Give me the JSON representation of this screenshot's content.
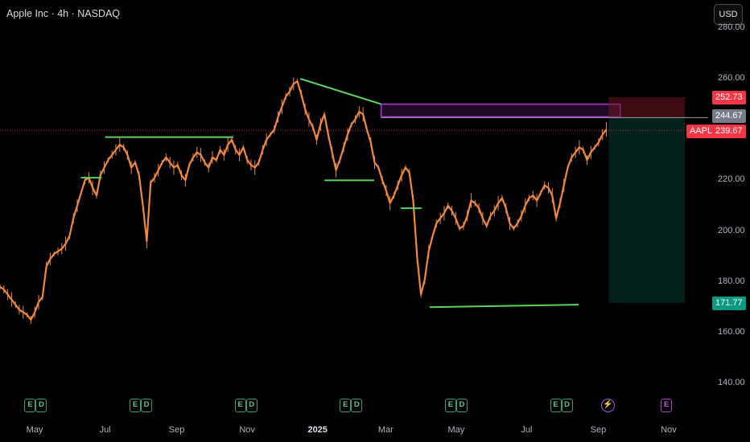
{
  "header": {
    "title": "Apple Inc · 4h · NASDAQ",
    "currency_button": "USD"
  },
  "colors": {
    "background": "#000000",
    "candle": "#f0883e",
    "trendline": "#5fd35f",
    "supply_zone": "#b03bd6",
    "target_zone": "#0e5a4a",
    "stop_zone": "#6e1520",
    "last_price": "#f23645",
    "target_label": "#089981"
  },
  "chart_data": {
    "type": "line",
    "symbol": "AAPL",
    "timeframe": "4h",
    "y_axis": {
      "ticks": [
        140,
        160,
        180,
        200,
        220,
        240,
        260,
        280
      ],
      "tick_labels": [
        "140.00",
        "160.00",
        "180.00",
        "200.00",
        "220.00",
        "240.00",
        "260.00",
        "280.00"
      ],
      "range": [
        133,
        290
      ]
    },
    "x_axis": {
      "tick_labels": [
        "May",
        "Jul",
        "Sep",
        "Nov",
        "2025",
        "Mar",
        "May",
        "Jul",
        "Sep",
        "Nov"
      ]
    },
    "price_series": {
      "x_range": [
        "2024-04-01",
        "2025-09-08"
      ],
      "values": [
        178,
        177,
        175,
        173,
        171,
        169,
        168,
        167,
        165,
        168,
        172,
        174,
        186,
        189,
        191,
        192,
        193,
        195,
        198,
        205,
        210,
        215,
        220,
        221,
        217,
        214,
        222,
        225,
        228,
        230,
        232,
        234,
        233,
        230,
        225,
        227,
        222,
        210,
        196,
        219,
        221,
        224,
        227,
        229,
        227,
        225,
        226,
        222,
        220,
        226,
        229,
        231,
        230,
        227,
        225,
        229,
        228,
        232,
        230,
        234,
        236,
        232,
        230,
        233,
        228,
        226,
        225,
        227,
        232,
        236,
        238,
        240,
        245,
        249,
        253,
        255,
        258,
        259,
        254,
        248,
        244,
        241,
        236,
        242,
        246,
        238,
        231,
        224,
        228,
        233,
        238,
        242,
        244,
        247,
        246,
        240,
        235,
        227,
        225,
        220,
        216,
        211,
        214,
        218,
        222,
        225,
        223,
        212,
        190,
        175,
        181,
        192,
        198,
        203,
        205,
        207,
        210,
        208,
        205,
        201,
        202,
        206,
        212,
        211,
        209,
        205,
        202,
        206,
        208,
        211,
        213,
        209,
        203,
        201,
        203,
        206,
        210,
        213,
        214,
        212,
        215,
        218,
        217,
        214,
        205,
        211,
        218,
        225,
        229,
        231,
        233,
        232,
        228,
        231,
        233,
        235,
        238,
        240
      ]
    },
    "levels": {
      "last_price": 239.67,
      "stop_level": 252.73,
      "entry_level": 244.67,
      "target_level": 171.77
    },
    "price_labels": {
      "last_symbol": "AAPL",
      "last": "239.67",
      "stop": "252.73",
      "entry": "244.67",
      "target": "171.77"
    },
    "zones": [
      {
        "name": "supply-zone",
        "from_date": "2025-02-25",
        "to_date": "2025-09-20",
        "top": 250.0,
        "bottom": 245.0
      },
      {
        "name": "stop-zone",
        "from_date": "2025-09-10",
        "to_date": "2025-11-15",
        "top": 252.73,
        "bottom": 244.67
      },
      {
        "name": "target-zone",
        "from_date": "2025-09-10",
        "to_date": "2025-11-15",
        "top": 244.67,
        "bottom": 171.77
      }
    ],
    "trendlines": [
      {
        "from": [
          "2024-07-01",
          237.0
        ],
        "to": [
          "2024-10-20",
          237.0
        ]
      },
      {
        "from": [
          "2024-06-10",
          221.0
        ],
        "to": [
          "2024-06-28",
          221.0
        ]
      },
      {
        "from": [
          "2024-12-17",
          260.0
        ],
        "to": [
          "2025-02-25",
          250.0
        ]
      },
      {
        "from": [
          "2025-01-07",
          220.0
        ],
        "to": [
          "2025-02-19",
          220.0
        ]
      },
      {
        "from": [
          "2025-03-14",
          209.0
        ],
        "to": [
          "2025-04-01",
          209.0
        ]
      },
      {
        "from": [
          "2025-04-08",
          170.0
        ],
        "to": [
          "2025-08-15",
          171.0
        ]
      }
    ],
    "earnings_markers": [
      "2024-05-02",
      "2024-08-01",
      "2024-10-31",
      "2025-01-30",
      "2025-05-01",
      "2025-07-31"
    ],
    "upcoming_events": [
      "2025-09-09",
      "2025-10-30"
    ]
  }
}
